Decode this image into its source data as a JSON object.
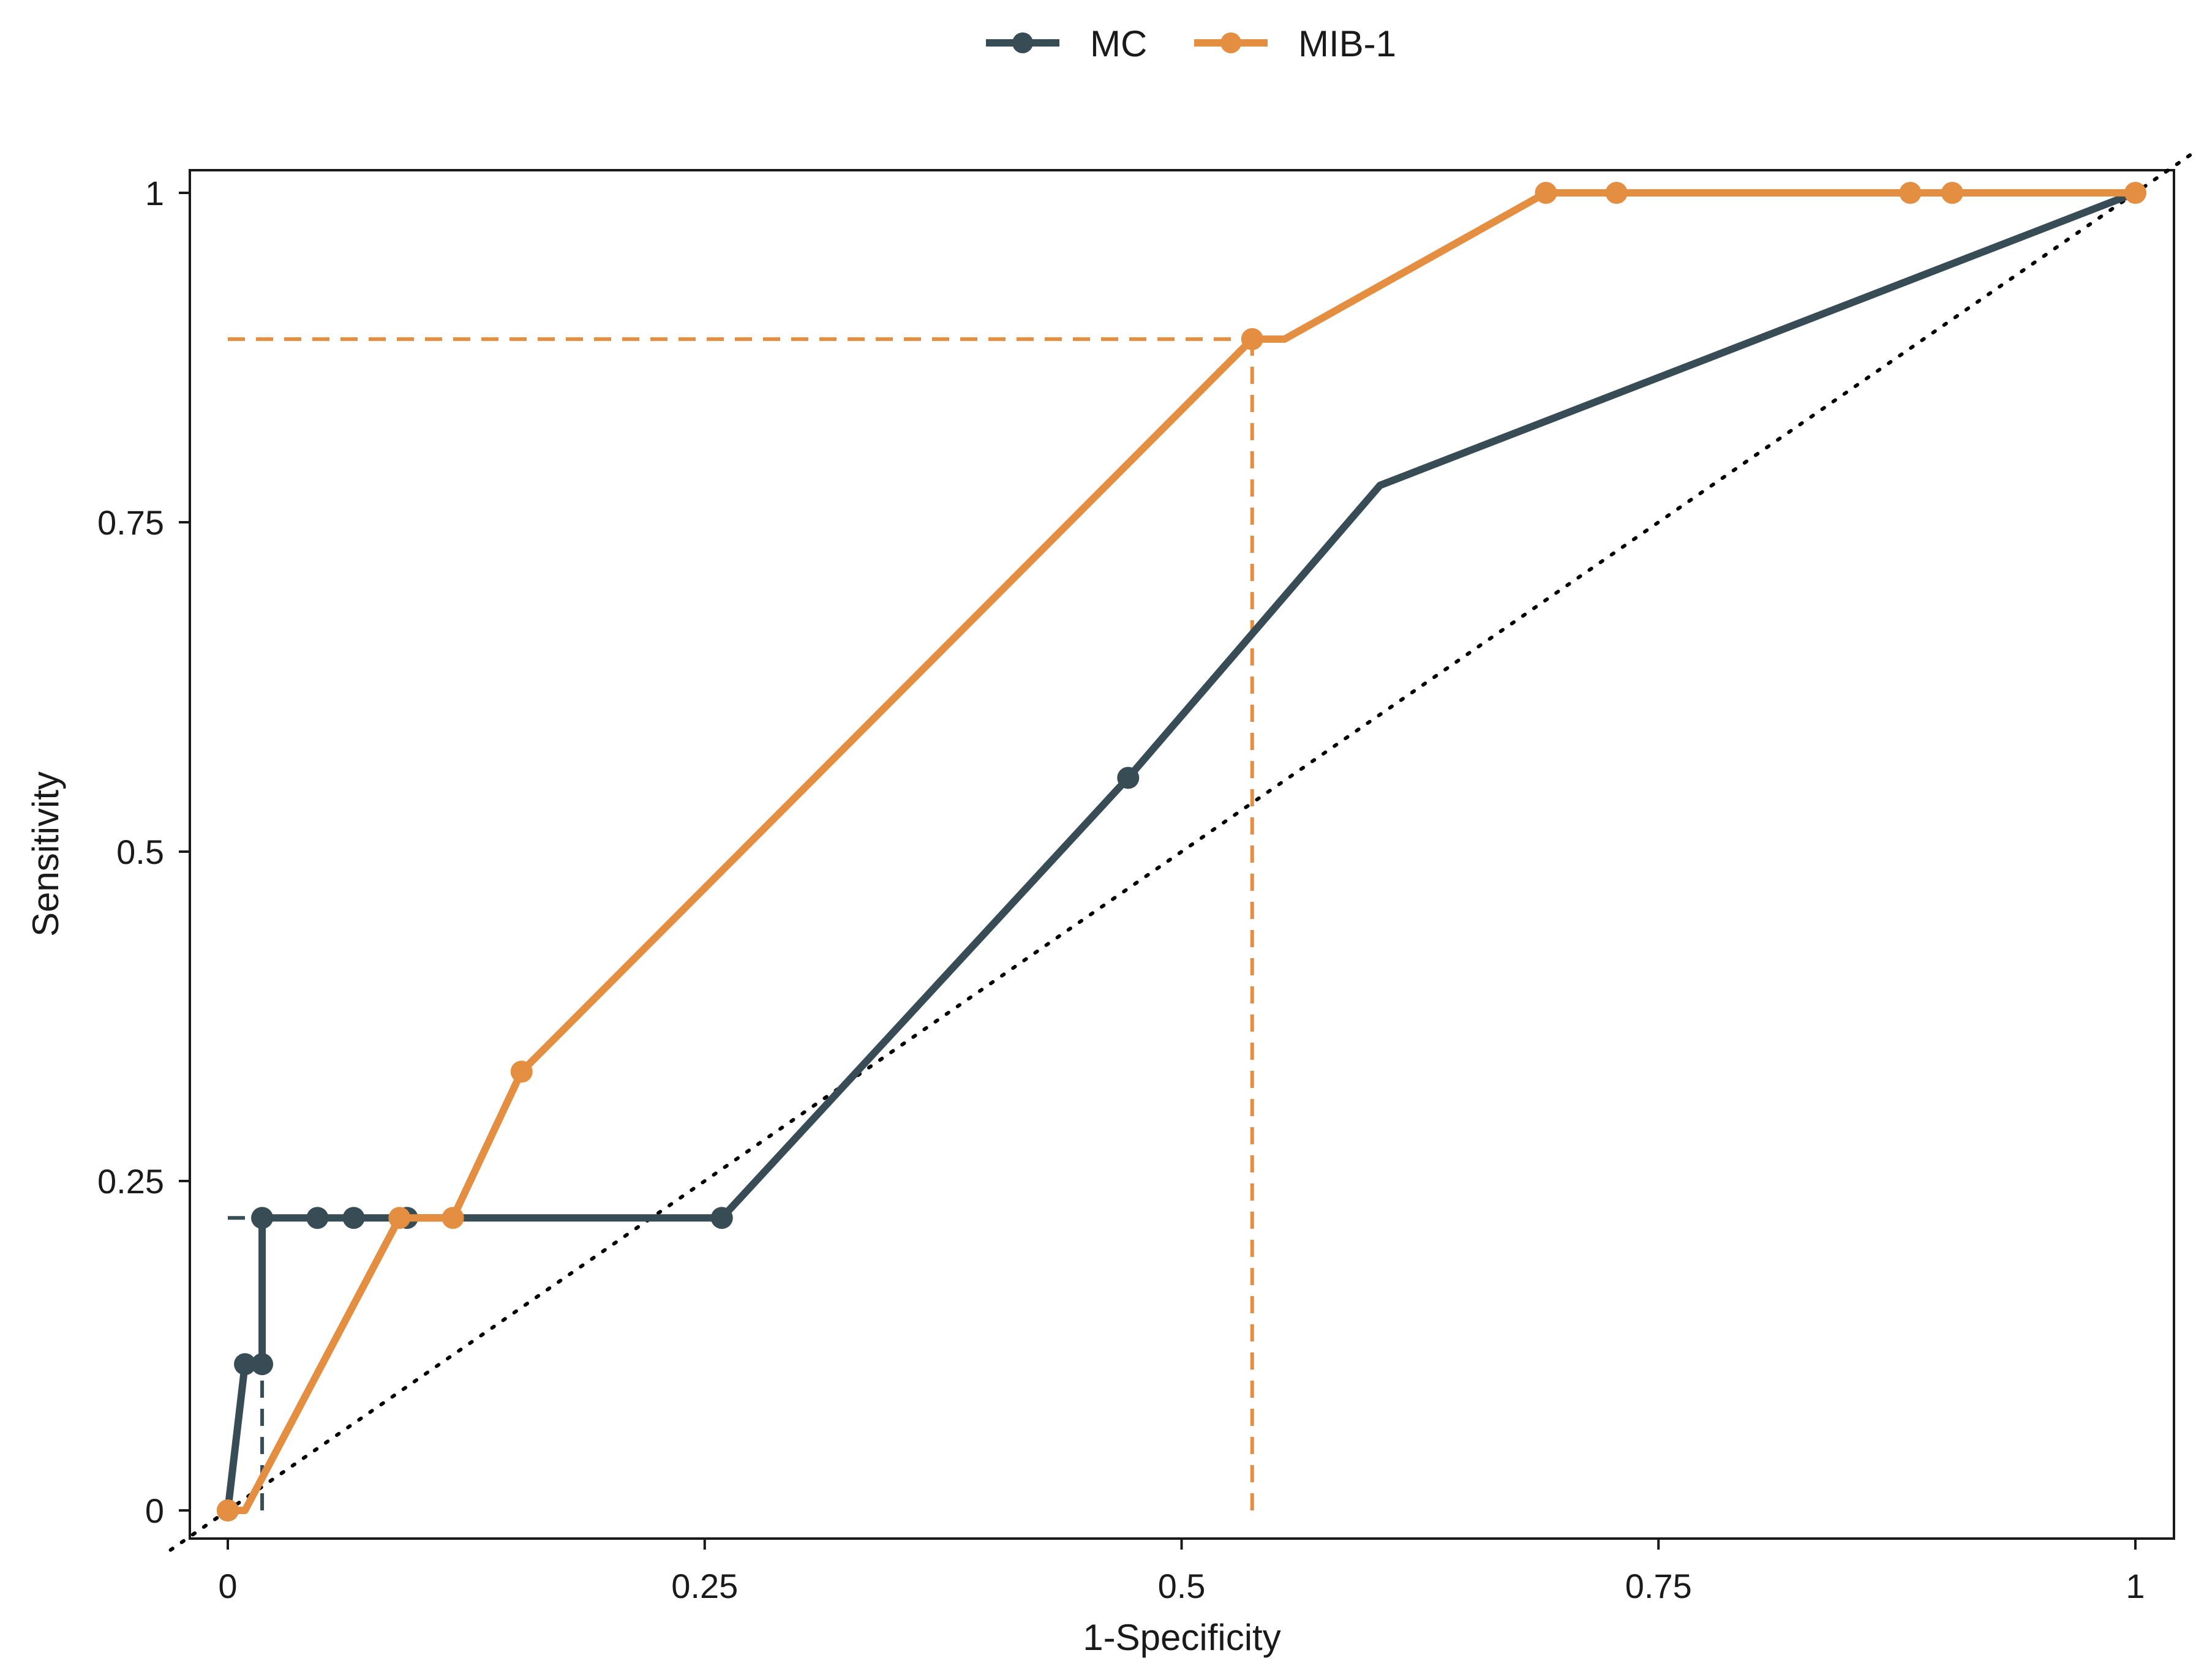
{
  "chart_data": {
    "type": "line",
    "title": "",
    "xlabel": "1-Specificity",
    "ylabel": "Sensitivity",
    "xlim": [
      0,
      1
    ],
    "ylim": [
      0,
      1
    ],
    "x_ticks": [
      0,
      0.25,
      0.5,
      0.75,
      1
    ],
    "x_tick_labels": [
      "0",
      "0.25",
      "0.5",
      "0.75",
      "1"
    ],
    "y_ticks": [
      0,
      0.25,
      0.5,
      0.75,
      1
    ],
    "y_tick_labels": [
      "0",
      "0.25",
      "0.5",
      "0.75",
      "1"
    ],
    "grid": false,
    "legend_position": "top",
    "reference_line": {
      "style": "dotted",
      "from": [
        0,
        0
      ],
      "to": [
        1,
        1
      ],
      "color": "#000000"
    },
    "series": [
      {
        "name": "MC",
        "color": "#384c55",
        "points": [
          [
            0,
            0
          ],
          [
            0.009,
            0.111
          ],
          [
            0.018,
            0.111
          ],
          [
            0.018,
            0.222
          ],
          [
            0.047,
            0.222
          ],
          [
            0.066,
            0.222
          ],
          [
            0.094,
            0.222
          ],
          [
            0.259,
            0.222
          ],
          [
            0.472,
            0.556
          ],
          [
            0.604,
            0.778
          ],
          [
            1,
            1
          ]
        ],
        "markers": [
          [
            0,
            0
          ],
          [
            0.009,
            0.111
          ],
          [
            0.018,
            0.111
          ],
          [
            0.018,
            0.222
          ],
          [
            0.047,
            0.222
          ],
          [
            0.066,
            0.222
          ],
          [
            0.094,
            0.222
          ],
          [
            0.259,
            0.222
          ],
          [
            0.472,
            0.556
          ]
        ],
        "optimal_cutoff": {
          "x": 0.018,
          "y": 0.222
        }
      },
      {
        "name": "MIB-1",
        "color": "#e38e41",
        "points": [
          [
            0,
            0
          ],
          [
            0.009,
            0
          ],
          [
            0.09,
            0.222
          ],
          [
            0.118,
            0.222
          ],
          [
            0.154,
            0.333
          ],
          [
            0.537,
            0.889
          ],
          [
            0.554,
            0.889
          ],
          [
            0.691,
            1
          ],
          [
            0.728,
            1
          ],
          [
            0.882,
            1
          ],
          [
            0.904,
            1
          ],
          [
            1,
            1
          ]
        ],
        "markers": [
          [
            0,
            0
          ],
          [
            0.09,
            0.222
          ],
          [
            0.118,
            0.222
          ],
          [
            0.154,
            0.333
          ],
          [
            0.537,
            0.889
          ],
          [
            0.691,
            1
          ],
          [
            0.728,
            1
          ],
          [
            0.882,
            1
          ],
          [
            0.904,
            1
          ],
          [
            1,
            1
          ]
        ],
        "optimal_cutoff": {
          "x": 0.537,
          "y": 0.889
        }
      }
    ]
  }
}
